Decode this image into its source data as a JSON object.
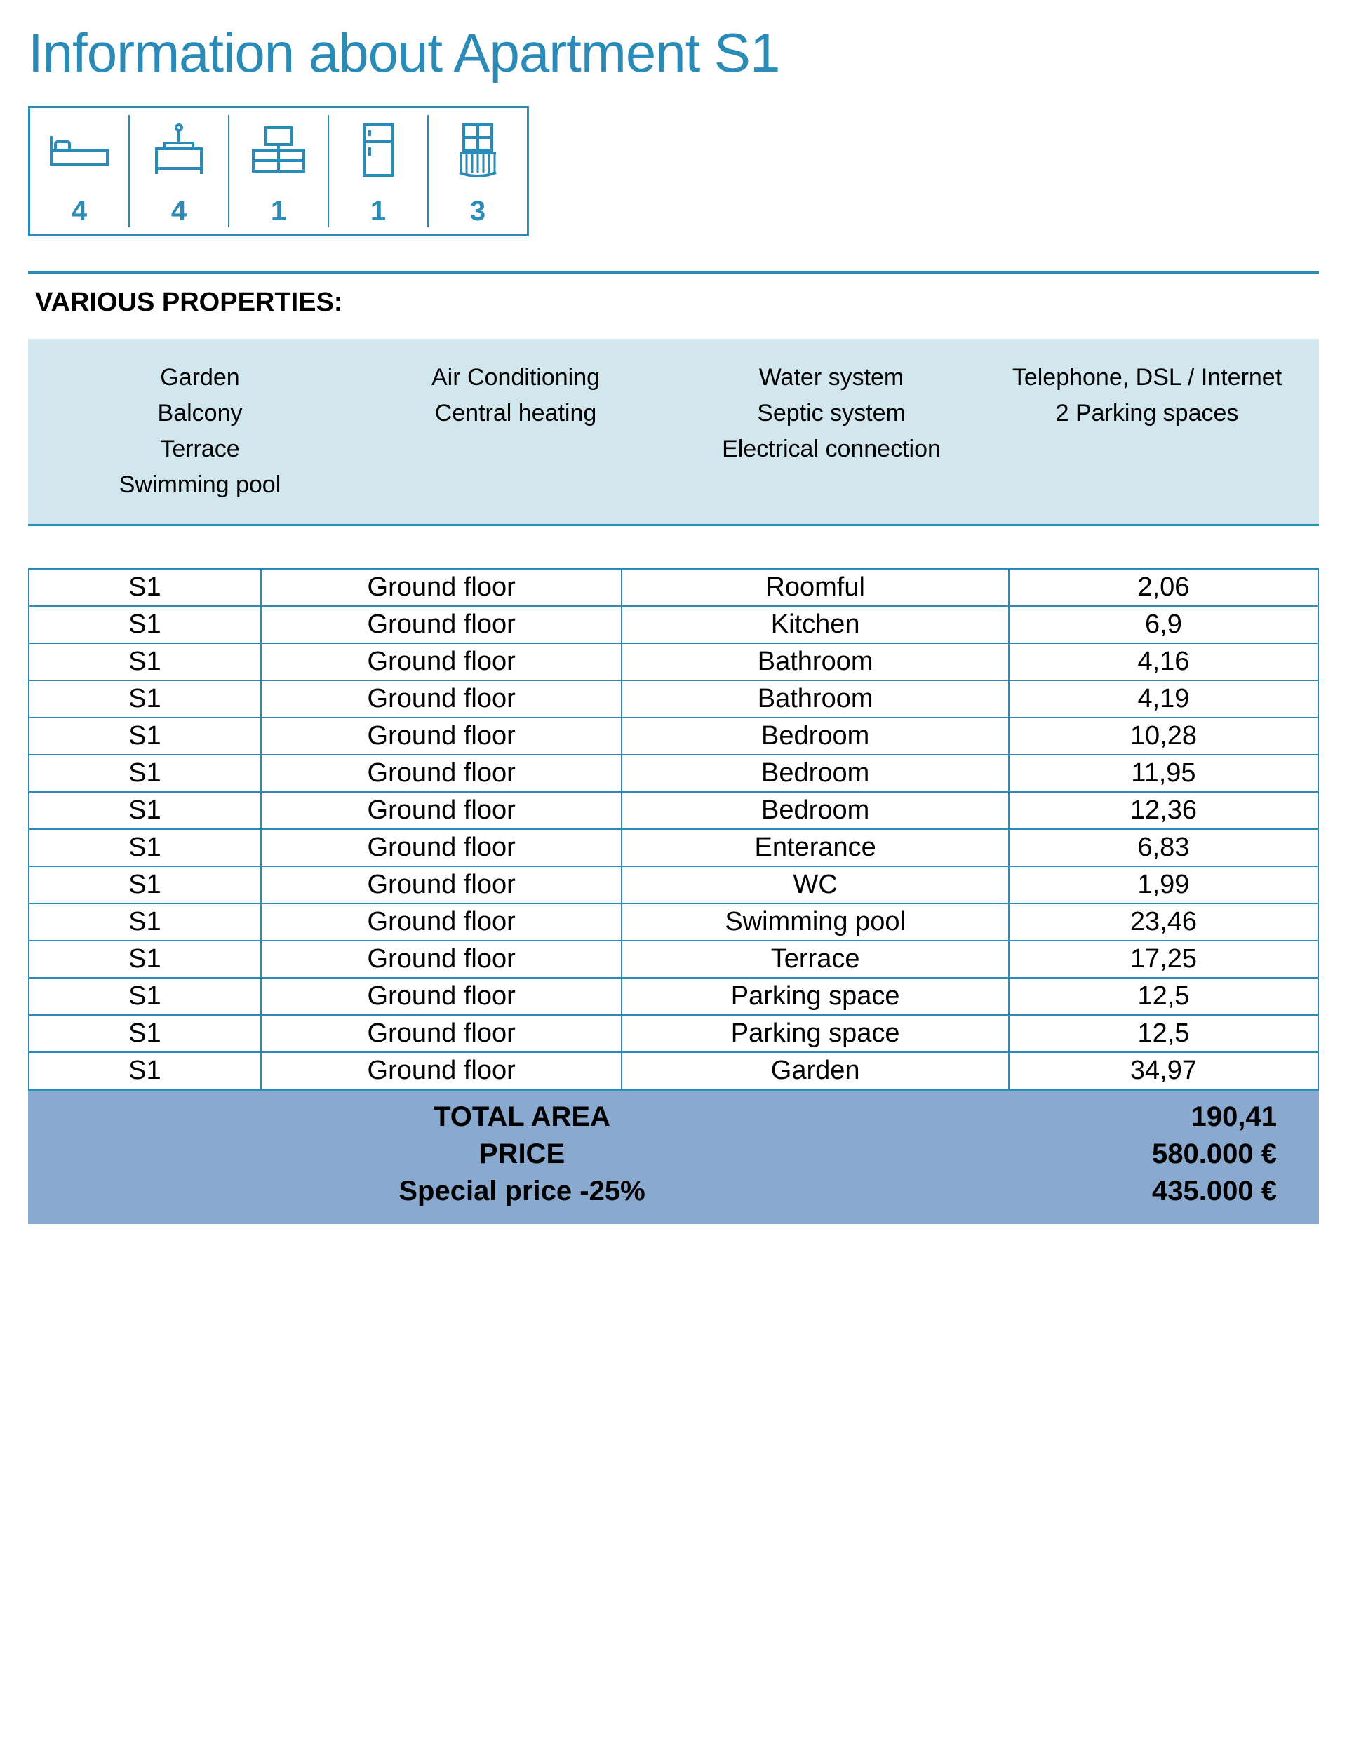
{
  "title": "Information about Apartment S1",
  "colors": {
    "accent": "#2a8ab8",
    "propbox_bg": "#d2e6ee",
    "totals_bg": "#8aa9cf",
    "border": "#2a8ab8"
  },
  "icons": [
    {
      "name": "bed-icon",
      "count": "4"
    },
    {
      "name": "sink-icon",
      "count": "4"
    },
    {
      "name": "tv-icon",
      "count": "1"
    },
    {
      "name": "fridge-icon",
      "count": "1"
    },
    {
      "name": "balcony-icon",
      "count": "3"
    }
  ],
  "section_label": "VARIOUS PROPERTIES:",
  "properties": {
    "col1": [
      "Garden",
      "Balcony",
      "Terrace",
      "Swimming pool"
    ],
    "col2": [
      "Air Conditioning",
      "Central heating"
    ],
    "col3": [
      "Water system",
      "Septic system",
      "Electrical connection"
    ],
    "col4": [
      "Telephone, DSL / Internet",
      "2 Parking spaces"
    ]
  },
  "rooms_table": {
    "rows": [
      [
        "S1",
        "Ground floor",
        "Roomful",
        "2,06"
      ],
      [
        "S1",
        "Ground floor",
        "Kitchen",
        "6,9"
      ],
      [
        "S1",
        "Ground floor",
        "Bathroom",
        "4,16"
      ],
      [
        "S1",
        "Ground floor",
        "Bathroom",
        "4,19"
      ],
      [
        "S1",
        "Ground floor",
        "Bedroom",
        "10,28"
      ],
      [
        "S1",
        "Ground floor",
        "Bedroom",
        "11,95"
      ],
      [
        "S1",
        "Ground floor",
        "Bedroom",
        "12,36"
      ],
      [
        "S1",
        "Ground floor",
        "Enterance",
        "6,83"
      ],
      [
        "S1",
        "Ground floor",
        "WC",
        "1,99"
      ],
      [
        "S1",
        "Ground floor",
        "Swimming pool",
        "23,46"
      ],
      [
        "S1",
        "Ground floor",
        "Terrace",
        "17,25"
      ],
      [
        "S1",
        "Ground floor",
        "Parking space",
        "12,5"
      ],
      [
        "S1",
        "Ground floor",
        "Parking space",
        "12,5"
      ],
      [
        "S1",
        "Ground floor",
        "Garden",
        "34,97"
      ]
    ]
  },
  "totals": {
    "area_label": "TOTAL AREA",
    "area_value": "190,41",
    "price_label": "PRICE",
    "price_value": "580.000 €",
    "special_label": "Special price -25%",
    "special_value": "435.000 €"
  }
}
